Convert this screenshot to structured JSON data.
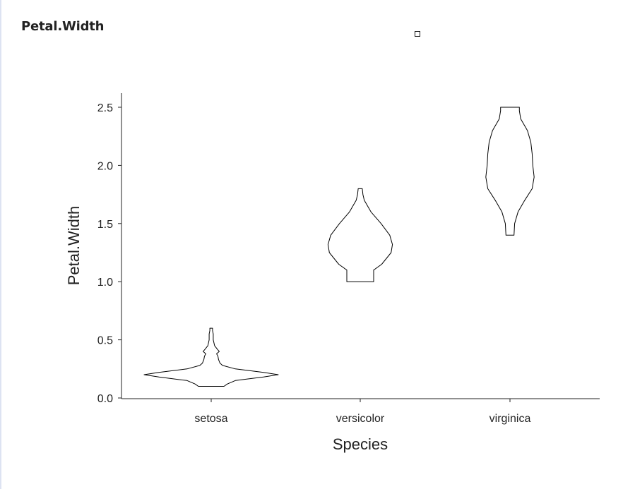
{
  "panel": {
    "title": "Petal.Width"
  },
  "chart_data": {
    "type": "violin",
    "xlabel": "Species",
    "ylabel": "Petal.Width",
    "categories": [
      "setosa",
      "versicolor",
      "virginica"
    ],
    "ylim": [
      0,
      2.6
    ],
    "yticks": [
      0.0,
      0.5,
      1.0,
      1.5,
      2.0,
      2.5
    ],
    "ytick_labels": [
      "0.0",
      "0.5",
      "1.0",
      "1.5",
      "2.0",
      "2.5"
    ],
    "grid": false,
    "violin_color": "#000000",
    "violins": [
      {
        "category": "setosa",
        "min": 0.1,
        "max": 0.6,
        "profile": [
          [
            0.1,
            0.19
          ],
          [
            0.12,
            0.24
          ],
          [
            0.15,
            0.36
          ],
          [
            0.18,
            0.78
          ],
          [
            0.2,
            1.0
          ],
          [
            0.22,
            0.78
          ],
          [
            0.25,
            0.36
          ],
          [
            0.28,
            0.17
          ],
          [
            0.3,
            0.13
          ],
          [
            0.33,
            0.11
          ],
          [
            0.36,
            0.1
          ],
          [
            0.38,
            0.08
          ],
          [
            0.4,
            0.12
          ],
          [
            0.42,
            0.09
          ],
          [
            0.45,
            0.05
          ],
          [
            0.5,
            0.03
          ],
          [
            0.55,
            0.03
          ],
          [
            0.58,
            0.02
          ],
          [
            0.6,
            0.02
          ]
        ]
      },
      {
        "category": "versicolor",
        "min": 1.0,
        "max": 1.8,
        "profile": [
          [
            1.0,
            0.2
          ],
          [
            1.1,
            0.2
          ],
          [
            1.15,
            0.32
          ],
          [
            1.25,
            0.46
          ],
          [
            1.32,
            0.48
          ],
          [
            1.4,
            0.44
          ],
          [
            1.5,
            0.31
          ],
          [
            1.6,
            0.16
          ],
          [
            1.7,
            0.06
          ],
          [
            1.75,
            0.04
          ],
          [
            1.8,
            0.03
          ]
        ]
      },
      {
        "category": "virginica",
        "min": 1.4,
        "max": 2.5,
        "profile": [
          [
            1.4,
            0.06
          ],
          [
            1.5,
            0.07
          ],
          [
            1.6,
            0.12
          ],
          [
            1.7,
            0.22
          ],
          [
            1.8,
            0.33
          ],
          [
            1.9,
            0.36
          ],
          [
            2.0,
            0.34
          ],
          [
            2.1,
            0.33
          ],
          [
            2.2,
            0.31
          ],
          [
            2.3,
            0.26
          ],
          [
            2.4,
            0.16
          ],
          [
            2.47,
            0.14
          ],
          [
            2.5,
            0.14
          ]
        ]
      }
    ]
  }
}
